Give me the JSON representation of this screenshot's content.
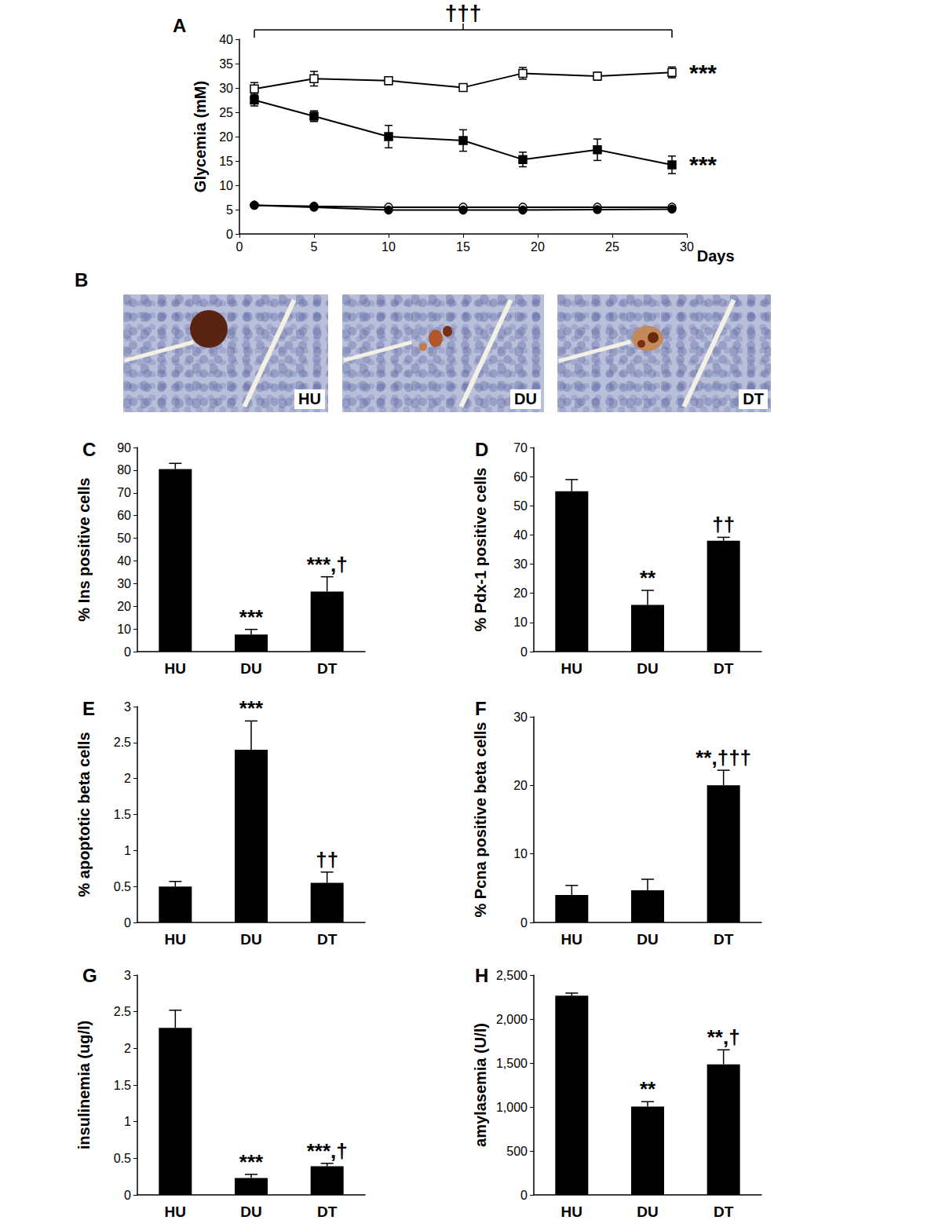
{
  "chart_data": [
    {
      "panel": "A",
      "type": "line",
      "x_label": "Days",
      "y_label": "Glycemia (mM)",
      "x": [
        1,
        5,
        10,
        15,
        19,
        24,
        29
      ],
      "xlim": [
        0,
        30
      ],
      "xticks": [
        0,
        5,
        10,
        15,
        20,
        25,
        30
      ],
      "ylim": [
        0,
        40
      ],
      "yticks": [
        0,
        5,
        10,
        15,
        20,
        25,
        30,
        35,
        40
      ],
      "grid": false,
      "series": [
        {
          "color": "#000000",
          "marker": "square-open",
          "line_style": "solid",
          "values": [
            29.8,
            31.9,
            31.5,
            30.1,
            33.0,
            32.4,
            33.2
          ],
          "errors": [
            1.3,
            1.5,
            0.8,
            0.7,
            1.2,
            0.8,
            1.1
          ],
          "annotation": "***"
        },
        {
          "color": "#000000",
          "marker": "square",
          "line_style": "solid",
          "values": [
            27.5,
            24.2,
            20.0,
            19.2,
            15.3,
            17.3,
            14.2
          ],
          "errors": [
            1.2,
            1.1,
            2.3,
            2.2,
            1.5,
            2.2,
            1.8
          ],
          "annotation": "***"
        },
        {
          "color": "#000000",
          "marker": "circle-open",
          "line_style": "solid",
          "values": [
            5.9,
            5.7,
            5.5,
            5.5,
            5.5,
            5.5,
            5.5
          ],
          "errors": [
            0.2,
            0.2,
            0.2,
            0.2,
            0.2,
            0.2,
            0.2
          ]
        },
        {
          "color": "#000000",
          "marker": "circle",
          "line_style": "solid",
          "values": [
            5.9,
            5.5,
            4.9,
            4.9,
            4.9,
            5.0,
            5.1
          ],
          "errors": [
            0.2,
            0.2,
            0.2,
            0.2,
            0.2,
            0.2,
            0.2
          ]
        }
      ],
      "bracket": {
        "from": 1,
        "to": 29,
        "label": "†††"
      }
    },
    {
      "panel": "C",
      "type": "bar",
      "y_label": "% Ins positive cells",
      "categories": [
        "HU",
        "DU",
        "DT"
      ],
      "values": [
        80.5,
        7.5,
        26.5
      ],
      "errors": [
        2.5,
        2.3,
        6.5
      ],
      "annotations": [
        null,
        "***",
        "***,†"
      ],
      "color": "#000000",
      "ylim": [
        0,
        90
      ],
      "yticks": [
        0,
        10,
        20,
        30,
        40,
        50,
        60,
        70,
        80,
        90
      ],
      "grid": false
    },
    {
      "panel": "D",
      "type": "bar",
      "y_label": "% Pdx-1 positive cells",
      "categories": [
        "HU",
        "DU",
        "DT"
      ],
      "values": [
        55,
        16,
        38
      ],
      "errors": [
        4,
        5,
        1.2
      ],
      "annotations": [
        null,
        "**",
        "††"
      ],
      "color": "#000000",
      "ylim": [
        0,
        70
      ],
      "yticks": [
        0,
        10,
        20,
        30,
        40,
        50,
        60,
        70
      ],
      "grid": false
    },
    {
      "panel": "E",
      "type": "bar",
      "y_label": "% apoptotic beta cells",
      "categories": [
        "HU",
        "DU",
        "DT"
      ],
      "values": [
        0.5,
        2.4,
        0.55
      ],
      "errors": [
        0.07,
        0.4,
        0.15
      ],
      "annotations": [
        null,
        "***",
        "††"
      ],
      "color": "#000000",
      "ylim": [
        0,
        3
      ],
      "yticks": [
        0,
        0.5,
        1,
        1.5,
        2,
        2.5,
        3
      ],
      "grid": false
    },
    {
      "panel": "F",
      "type": "bar",
      "y_label": "% Pcna positive beta cells",
      "categories": [
        "HU",
        "DU",
        "DT"
      ],
      "values": [
        4,
        4.7,
        20
      ],
      "errors": [
        1.4,
        1.6,
        2.2
      ],
      "annotations": [
        null,
        null,
        "**,†††"
      ],
      "color": "#000000",
      "ylim": [
        0,
        30
      ],
      "yticks": [
        0,
        10,
        20,
        30
      ],
      "grid": false
    },
    {
      "panel": "G",
      "type": "bar",
      "y_label": "insulinemia (ug/l)",
      "categories": [
        "HU",
        "DU",
        "DT"
      ],
      "values": [
        2.28,
        0.23,
        0.39
      ],
      "errors": [
        0.24,
        0.05,
        0.04
      ],
      "annotations": [
        null,
        "***",
        "***,†"
      ],
      "color": "#000000",
      "ylim": [
        0,
        3
      ],
      "yticks": [
        0,
        0.5,
        1,
        1.5,
        2,
        2.5,
        3
      ],
      "grid": false
    },
    {
      "panel": "H",
      "type": "bar",
      "y_label": "amylasemia (U/l)",
      "categories": [
        "HU",
        "DU",
        "DT"
      ],
      "values": [
        2265,
        1005,
        1485
      ],
      "errors": [
        30,
        55,
        165
      ],
      "annotations": [
        null,
        "**",
        "**,†"
      ],
      "color": "#000000",
      "ylim": [
        0,
        2500
      ],
      "yticks": [
        0,
        500,
        1000,
        1500,
        2000,
        2500
      ],
      "grid": false
    }
  ],
  "images": {
    "panel": "B",
    "labels": [
      "HU",
      "DU",
      "DT"
    ]
  }
}
